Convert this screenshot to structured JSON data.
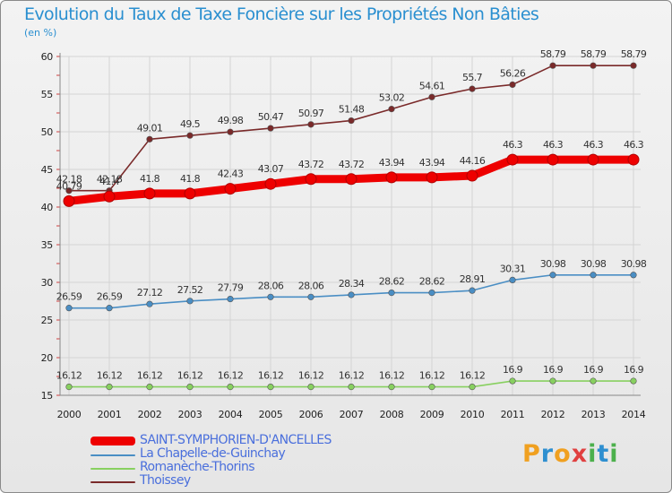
{
  "title": "Evolution du Taux de Taxe Foncière sur les Propriétés Non Bâties",
  "unit_label": "(en %)",
  "logo": {
    "letters": [
      "P",
      "r",
      "o",
      "x",
      "i",
      "t",
      "i"
    ],
    "colors": [
      "#f0a020",
      "#2e8fd0",
      "#f0a020",
      "#e04040",
      "#4cb04c",
      "#2e8fd0",
      "#4cb04c"
    ]
  },
  "chart_data": {
    "type": "line",
    "title": "Evolution du Taux de Taxe Foncière sur les Propriétés Non Bâties",
    "ylabel": "(en %)",
    "x": [
      "2000",
      "2001",
      "2002",
      "2003",
      "2004",
      "2005",
      "2006",
      "2007",
      "2008",
      "2009",
      "2010",
      "2011",
      "2012",
      "2013",
      "2014"
    ],
    "ylim": [
      15,
      60
    ],
    "yticks": [
      "15",
      "20",
      "25",
      "30",
      "35",
      "40",
      "45",
      "50",
      "55",
      "60"
    ],
    "grid": true,
    "legend_position": "bottom-left",
    "series": [
      {
        "name": "SAINT-SYMPHORIEN-D'ANCELLES",
        "color": "#ee0000",
        "thick": true,
        "values": [
          40.79,
          41.4,
          41.8,
          41.8,
          42.43,
          43.07,
          43.72,
          43.72,
          43.94,
          43.94,
          44.16,
          46.3,
          46.3,
          46.3,
          46.3
        ],
        "labels": [
          "40.79",
          "41.4",
          "41.8",
          "41.8",
          "42.43",
          "43.07",
          "43.72",
          "43.72",
          "43.94",
          "43.94",
          "44.16",
          "46.3",
          "46.3",
          "46.3",
          "46.3"
        ]
      },
      {
        "name": "La Chapelle-de-Guinchay",
        "color": "#4a8ec4",
        "thick": false,
        "values": [
          26.59,
          26.59,
          27.12,
          27.52,
          27.79,
          28.06,
          28.06,
          28.34,
          28.62,
          28.62,
          28.91,
          30.31,
          30.98,
          30.98,
          30.98
        ],
        "labels": [
          "26.59",
          "26.59",
          "27.12",
          "27.52",
          "27.79",
          "28.06",
          "28.06",
          "28.34",
          "28.62",
          "28.62",
          "28.91",
          "30.31",
          "30.98",
          "30.98",
          "30.98"
        ]
      },
      {
        "name": "Romanèche-Thorins",
        "color": "#88d060",
        "thick": false,
        "values": [
          16.12,
          16.12,
          16.12,
          16.12,
          16.12,
          16.12,
          16.12,
          16.12,
          16.12,
          16.12,
          16.12,
          16.9,
          16.9,
          16.9,
          16.9
        ],
        "labels": [
          "16.12",
          "16.12",
          "16.12",
          "16.12",
          "16.12",
          "16.12",
          "16.12",
          "16.12",
          "16.12",
          "16.12",
          "16.12",
          "16.9",
          "16.9",
          "16.9",
          "16.9"
        ]
      },
      {
        "name": "Thoissey",
        "color": "#7a2a2a",
        "thick": false,
        "values": [
          42.18,
          42.18,
          49.01,
          49.5,
          49.98,
          50.47,
          50.97,
          51.48,
          53.02,
          54.61,
          55.7,
          56.26,
          58.79,
          58.79,
          58.79
        ],
        "labels": [
          "42.18",
          "42.18",
          "49.01",
          "49.5",
          "49.98",
          "50.47",
          "50.97",
          "51.48",
          "53.02",
          "54.61",
          "55.7",
          "56.26",
          "58.79",
          "58.79",
          "58.79"
        ]
      }
    ]
  }
}
